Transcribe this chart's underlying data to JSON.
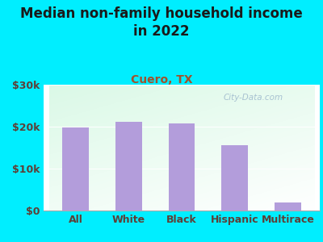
{
  "title": "Median non-family household income\nin 2022",
  "subtitle": "Cuero, TX",
  "categories": [
    "All",
    "White",
    "Black",
    "Hispanic",
    "Multirace"
  ],
  "values": [
    19800,
    21200,
    20700,
    15500,
    1900
  ],
  "bar_color": "#b39ddb",
  "background_outer": "#00eeff",
  "title_color": "#1a1a1a",
  "subtitle_color": "#a0522d",
  "tick_label_color": "#5d4037",
  "ylim": [
    0,
    30000
  ],
  "yticks": [
    0,
    10000,
    20000,
    30000
  ],
  "ytick_labels": [
    "$0",
    "$10k",
    "$20k",
    "$30k"
  ],
  "watermark": "City-Data.com",
  "title_fontsize": 12,
  "subtitle_fontsize": 10,
  "tick_fontsize": 9
}
